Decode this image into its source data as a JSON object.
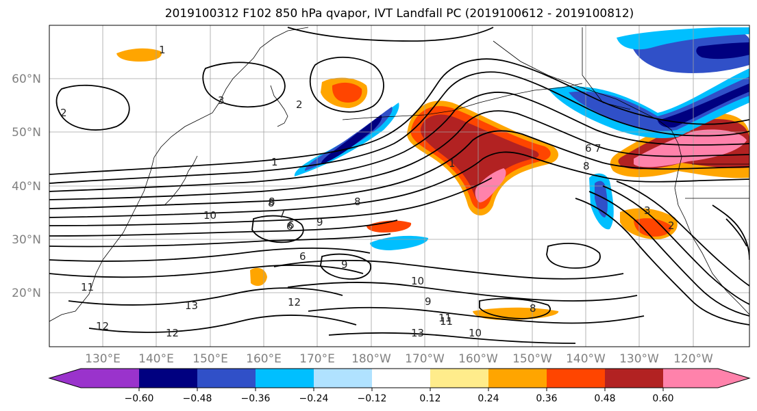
{
  "title": "2019100312 F102 850 hPa qvapor, IVT Landfall PC (2019100612 - 2019100812)",
  "map": {
    "lat_labels": [
      "60°N",
      "50°N",
      "40°N",
      "30°N",
      "20°N"
    ],
    "lon_labels": [
      "130°E",
      "140°E",
      "150°E",
      "160°E",
      "170°E",
      "180°W",
      "170°W",
      "160°W",
      "150°W",
      "140°W",
      "130°W",
      "120°W"
    ],
    "contour_labels": [
      "1",
      "2",
      "3",
      "2",
      "1",
      "1",
      "6",
      "7",
      "8",
      "10",
      "6",
      "8",
      "9",
      "9",
      "10",
      "11",
      "12",
      "13",
      "12",
      "13",
      "12",
      "11",
      "10",
      "8",
      "6",
      "8",
      "9",
      "11",
      "6",
      "7",
      "8",
      "3",
      "2"
    ]
  },
  "colorbar": {
    "tick_labels": [
      "−0.60",
      "−0.48",
      "−0.36",
      "−0.24",
      "−0.12",
      "0.12",
      "0.24",
      "0.36",
      "0.48",
      "0.60"
    ],
    "colors": {
      "lt_neg060": "#9a33cc",
      "neg060_neg048": "#000080",
      "neg048_neg036": "#3050c8",
      "neg036_neg024": "#00bfff",
      "neg024_neg012": "#b0e2ff",
      "neg012_012": "#ffffff",
      "pos012_024": "#ffec8b",
      "pos024_036": "#ffa500",
      "pos036_048": "#ff4500",
      "pos048_060": "#b22222",
      "gt_060": "#ff82ab"
    }
  }
}
